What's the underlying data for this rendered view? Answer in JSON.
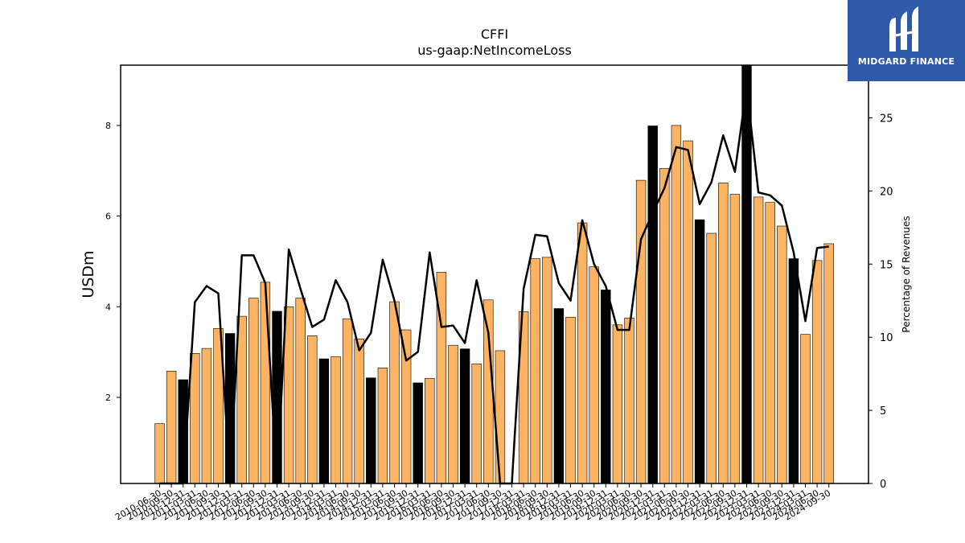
{
  "chart_data": {
    "type": "bar",
    "title": "CFFI",
    "subtitle": "us-gaap:NetIncomeLoss",
    "ylabel": "USDm",
    "y2label": "Percentage of Revenues",
    "ylim": [
      0.1,
      9.33
    ],
    "y2lim": [
      0,
      28.6
    ],
    "yticks": [
      2,
      4,
      6,
      8
    ],
    "y2ticks": [
      0,
      5,
      10,
      15,
      20,
      25
    ],
    "colors": {
      "quarter": "#fdb462",
      "year_end": "#000000",
      "line": "#000000"
    },
    "categories": [
      "2010-06-30",
      "2010-09-30",
      "2010-12-31",
      "2011-03-31",
      "2011-06-30",
      "2011-09-30",
      "2011-12-31",
      "2012-03-31",
      "2012-06-30",
      "2012-09-30",
      "2012-12-31",
      "2013-03-31",
      "2013-06-30",
      "2013-09-30",
      "2013-12-31",
      "2014-03-31",
      "2014-06-30",
      "2014-09-30",
      "2014-12-31",
      "2015-03-31",
      "2015-06-30",
      "2015-09-30",
      "2015-12-31",
      "2016-03-31",
      "2016-06-30",
      "2016-09-30",
      "2016-12-31",
      "2017-03-31",
      "2017-06-30",
      "2017-09-30",
      "2017-12-31",
      "2018-03-31",
      "2018-06-30",
      "2018-09-30",
      "2018-12-31",
      "2019-03-31",
      "2019-06-30",
      "2019-09-30",
      "2019-12-31",
      "2020-03-31",
      "2020-06-30",
      "2020-09-30",
      "2020-12-31",
      "2021-03-31",
      "2021-06-30",
      "2021-09-30",
      "2021-12-31",
      "2022-03-31",
      "2022-06-30",
      "2022-09-30",
      "2022-12-31",
      "2023-03-31",
      "2023-06-30",
      "2023-09-30",
      "2023-12-31",
      "2024-03-31",
      "2024-06-30",
      "2024-09-30"
    ],
    "xticklabels": [
      "2010-06-30",
      "2010-09-30",
      "2010-12-31",
      "2011-03-31",
      "2011-06-30",
      "2011-09-30",
      "2011-12-31",
      "2012-03-31",
      "2012-06-30",
      "2012-09-30",
      "2012-12-31",
      "2013-03-31",
      "2013-06-30",
      "2013-09-30",
      "2013-12-31",
      "2014-03-31",
      "2014-06-30",
      "2014-09-30",
      "2014-12-31",
      "2015-03-31",
      "2015-06-30",
      "2015-09-30",
      "2015-12-31",
      "2016-03-31",
      "2016-06-30",
      "2016-09-30",
      "2016-12-31",
      "2017-03-31",
      "2017-06-30",
      "2017-09-30",
      "2017-12-31",
      "2018-03-31",
      "2018-06-30",
      "2018-09-30",
      "2018-12-31",
      "2019-03-31",
      "2019-06-30",
      "2019-09-30",
      "2019-12-31",
      "2020-03-31",
      "2020-06-30",
      "2020-09-30",
      "2020-12-31",
      "2021-03-31",
      "2021-06-30",
      "2021-09-30",
      "2021-12-31",
      "2022-03-31",
      "2022-06-30",
      "2022-09-30",
      "2022-12-31",
      "2023-03-31",
      "2023-06-30",
      "2023-09-30",
      "2023-12-31",
      "2024-03-31",
      "2024-06-30",
      "2024-09-30"
    ],
    "values": [
      1.42,
      2.58,
      2.39,
      2.97,
      3.08,
      3.52,
      3.41,
      3.79,
      4.19,
      4.54,
      3.9,
      4.0,
      4.19,
      3.36,
      2.85,
      2.9,
      3.73,
      3.29,
      2.43,
      2.65,
      4.11,
      3.49,
      2.32,
      2.42,
      4.76,
      3.15,
      3.07,
      2.74,
      4.15,
      3.03,
      0.1,
      3.89,
      5.06,
      5.09,
      3.96,
      3.77,
      5.85,
      4.88,
      4.37,
      3.6,
      3.75,
      6.79,
      7.99,
      7.05,
      8.0,
      7.66,
      5.92,
      5.62,
      6.73,
      6.48,
      9.33,
      6.42,
      6.3,
      5.78,
      5.06,
      3.39,
      5.02,
      5.39
    ],
    "year_end": [
      false,
      false,
      true,
      false,
      false,
      false,
      true,
      false,
      false,
      false,
      true,
      false,
      false,
      false,
      true,
      false,
      false,
      false,
      true,
      false,
      false,
      false,
      true,
      false,
      false,
      false,
      true,
      false,
      false,
      false,
      true,
      false,
      false,
      false,
      true,
      false,
      false,
      false,
      true,
      false,
      false,
      false,
      true,
      false,
      false,
      false,
      true,
      false,
      false,
      false,
      true,
      false,
      false,
      false,
      true,
      false,
      false,
      false
    ],
    "line_series": {
      "axis": "right",
      "values": [
        0.0,
        0.0,
        0.0,
        12.4,
        13.5,
        13.0,
        0.0,
        15.6,
        15.6,
        13.7,
        0.0,
        16.0,
        13.3,
        10.7,
        11.2,
        13.9,
        12.4,
        9.1,
        10.3,
        15.3,
        12.5,
        8.4,
        9.0,
        15.8,
        10.7,
        10.8,
        9.6,
        13.9,
        10.3,
        0.0,
        0.0,
        13.3,
        17.0,
        16.9,
        13.7,
        12.5,
        18.0,
        15.0,
        13.5,
        10.5,
        10.5,
        16.7,
        18.5,
        20.2,
        23.0,
        22.8,
        19.1,
        20.6,
        23.8,
        21.3,
        27.1,
        19.9,
        19.7,
        19.0,
        15.8,
        11.1,
        16.1,
        16.2
      ]
    }
  },
  "brand": {
    "name": "MIDGARD FINANCE",
    "background": "#2f5aa8",
    "icon": "midgard-logo-icon"
  }
}
